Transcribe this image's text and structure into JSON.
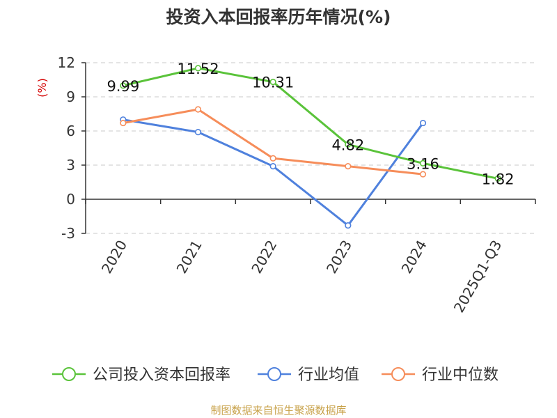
{
  "chart_data": {
    "type": "line",
    "title": "投资入本回报率历年情况(%)",
    "ylabel": "(%)",
    "categories": [
      "2020",
      "2021",
      "2022",
      "2023",
      "2024",
      "2025Q1-Q3"
    ],
    "ylim": [
      -3,
      12
    ],
    "yticks": [
      -3,
      0,
      3,
      6,
      9,
      12
    ],
    "grid": true,
    "legend_position": "bottom",
    "series": [
      {
        "name": "公司投入资本回报率",
        "color": "#5ac33a",
        "values": [
          9.99,
          11.52,
          10.31,
          4.82,
          3.16,
          1.82
        ],
        "labels": [
          "9.99",
          "11.52",
          "10.31",
          "4.82",
          "3.16",
          "1.82"
        ]
      },
      {
        "name": "行业均值",
        "color": "#4f81dd",
        "values": [
          7.0,
          5.9,
          2.9,
          -2.3,
          6.7,
          null
        ]
      },
      {
        "name": "行业中位数",
        "color": "#f68d5a",
        "values": [
          6.7,
          7.9,
          3.6,
          2.9,
          2.2,
          null
        ]
      }
    ]
  },
  "source": "制图数据来自恒生聚源数据库"
}
